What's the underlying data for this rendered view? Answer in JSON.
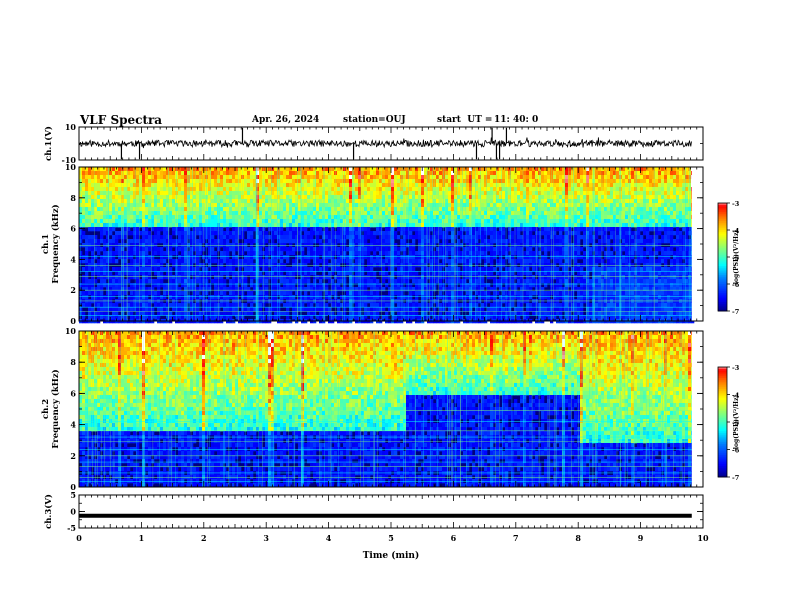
{
  "header": {
    "title": "VLF Spectra",
    "date": "Apr. 26, 2024",
    "station": "station=OUJ",
    "start_label": "start  UT =",
    "start_time": "11: 40: 0"
  },
  "colors": {
    "colormap": [
      "#00007f",
      "#0000ff",
      "#007fff",
      "#00ffff",
      "#7fff7f",
      "#ffff00",
      "#ff7f00",
      "#ff0000",
      "#ffffff"
    ],
    "trace": "#000000"
  },
  "chart_data": [
    {
      "type": "line",
      "panel": "ch1-waveform",
      "ylabel": "ch.1(V)",
      "ylim": [
        -10,
        10
      ],
      "yticks": [
        "10",
        "-10"
      ],
      "baseline_value": 0,
      "spike_times_min": [
        0.68,
        0.97,
        2.62,
        4.4,
        6.37,
        6.62,
        6.69,
        6.74,
        6.85
      ]
    },
    {
      "type": "heatmap",
      "panel": "ch1-spectrogram",
      "ylabel": "ch.1\nFrequency (kHz)",
      "ylim": [
        0,
        10
      ],
      "yticks": [
        "0",
        "2",
        "4",
        "6",
        "8",
        "10"
      ],
      "colorbar": {
        "label": "log(PSD)(V²/Hz)",
        "range": [
          -7,
          -3
        ],
        "ticks": [
          "-3",
          "-4",
          "-5",
          "-6",
          "-7"
        ]
      },
      "segments": [
        {
          "t_min": [
            0,
            8.2
          ],
          "quiet_below_khz": 6.2
        },
        {
          "t_min": [
            8.2,
            9.82
          ],
          "quiet_below_khz": 6.2,
          "banded_below_khz": 3.6
        }
      ]
    },
    {
      "type": "heatmap",
      "panel": "ch2-spectrogram",
      "ylabel": "ch.2\nFrequency (kHz)",
      "ylim": [
        0,
        10
      ],
      "yticks": [
        "0",
        "2",
        "4",
        "6",
        "8",
        "10"
      ],
      "colorbar": {
        "label": "log(PSD)(V²/Hz)",
        "range": [
          -7,
          -3
        ],
        "ticks": [
          "-3",
          "-4",
          "-5",
          "-6",
          "-7"
        ]
      },
      "segments": [
        {
          "t_min": [
            0,
            5.2
          ],
          "quiet_below_khz": 3.8
        },
        {
          "t_min": [
            5.2,
            8.0
          ],
          "quiet_below_khz": 6.0
        },
        {
          "t_min": [
            8.0,
            9.82
          ],
          "quiet_below_khz": 3.0
        }
      ]
    },
    {
      "type": "line",
      "panel": "ch3-waveform",
      "ylabel": "ch.3(V)",
      "ylim": [
        -5,
        5
      ],
      "yticks": [
        "5",
        "0",
        "-5"
      ],
      "x": [
        0,
        9.82
      ],
      "y": [
        -1.3,
        -1.3
      ]
    }
  ],
  "xaxis": {
    "label": "Time (min)",
    "range": [
      0,
      10
    ],
    "ticks": [
      "0",
      "1",
      "2",
      "3",
      "4",
      "5",
      "6",
      "7",
      "8",
      "9",
      "10"
    ],
    "data_end_min": 9.82
  }
}
